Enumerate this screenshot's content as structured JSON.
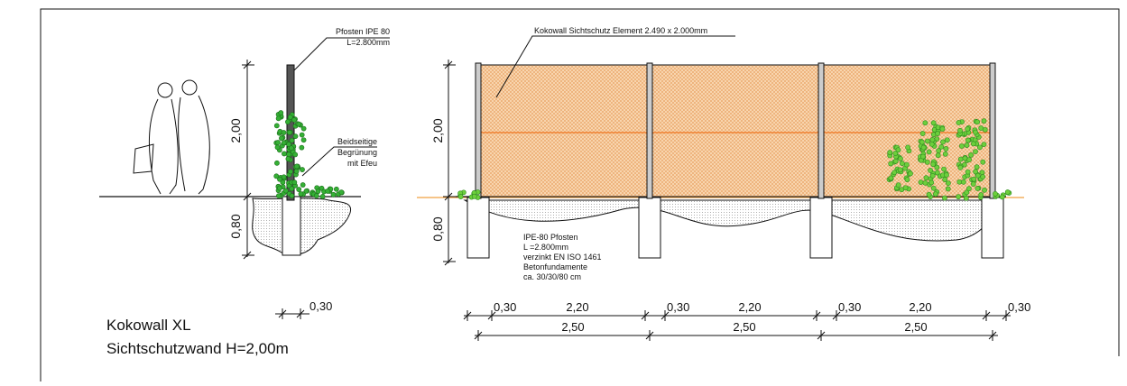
{
  "left_section": {
    "post_label": [
      "Pfosten IPE 80",
      "L=2.800mm"
    ],
    "planting_label": [
      "Beidseitige",
      "Begrünung",
      "mit Efeu"
    ],
    "height_dim": "2,00",
    "foundation_dim": "0,80",
    "width_dim": "0,30"
  },
  "title": [
    "Kokowall XL",
    "Sichtschutzwand H=2,00m"
  ],
  "elevation": {
    "element_label": "Kokowall Sichtschutz Element 2.490 x 2.000mm",
    "height_dim": "2,00",
    "foundation_dim": "0,80",
    "note": [
      "IPE-80 Pfosten",
      "L =2.800mm",
      "verzinkt EN ISO 1461",
      "Betonfundamente",
      "ca. 30/30/80 cm"
    ],
    "dims_row1": [
      "0,30",
      "2,20",
      "0,30",
      "2,20",
      "0,30",
      "2,20",
      "0,30"
    ],
    "dims_row2": [
      "2,50",
      "2,50",
      "2,50"
    ]
  }
}
